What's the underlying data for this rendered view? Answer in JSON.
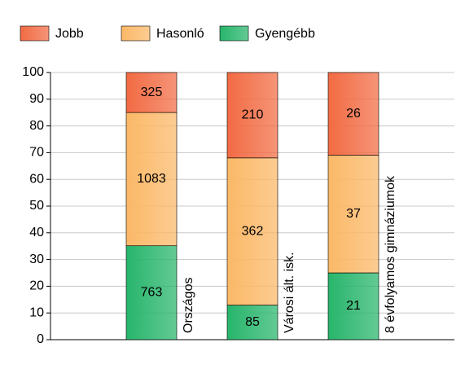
{
  "chart_data": {
    "type": "bar",
    "stacking": "percent",
    "categories": [
      "Országos",
      "Városi ált. isk.",
      "8 évfolyamos gimnáziumok"
    ],
    "series": [
      {
        "name": "Jobb",
        "color": "#f26b43",
        "values": [
          325,
          210,
          26
        ]
      },
      {
        "name": "Hasonló",
        "color": "#fbb867",
        "values": [
          1083,
          362,
          37
        ]
      },
      {
        "name": "Gyengébb",
        "color": "#27b56b",
        "values": [
          763,
          85,
          21
        ]
      }
    ],
    "ylim": [
      0,
      100
    ],
    "yticks": [
      0,
      10,
      20,
      30,
      40,
      50,
      60,
      70,
      80,
      90,
      100
    ],
    "grid": true
  }
}
